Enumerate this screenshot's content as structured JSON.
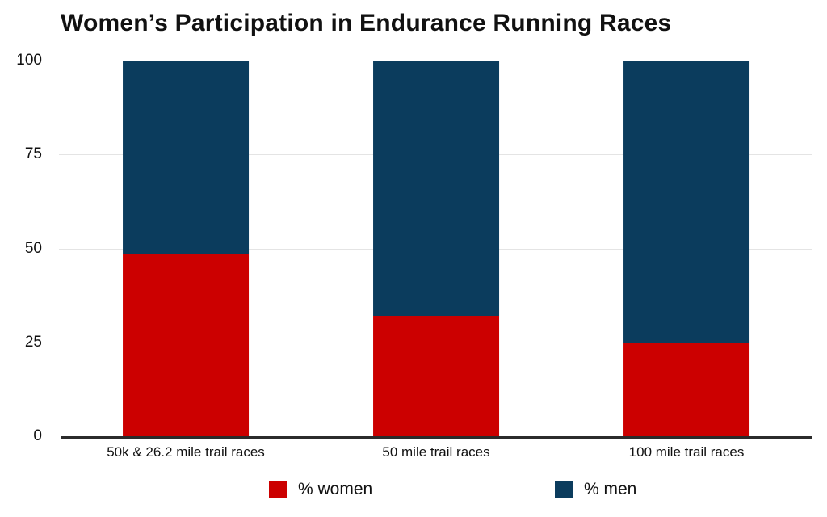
{
  "title": "Women’s Participation in Endurance Running Races",
  "colors": {
    "women": "#CC0000",
    "men": "#0B3C5D",
    "gridline": "#E4E4E4",
    "axis": "#2B2B2B",
    "text": "#111111"
  },
  "chart_data": {
    "type": "bar",
    "stacked": true,
    "title": "Women’s Participation in Endurance Running Races",
    "categories": [
      "50k & 26.2 mile trail races",
      "50 mile trail races",
      "100 mile trail races"
    ],
    "series": [
      {
        "name": "% women",
        "color": "#CC0000",
        "values": [
          48.5,
          32,
          25
        ]
      },
      {
        "name": "% men",
        "color": "#0B3C5D",
        "values": [
          51.5,
          68,
          75
        ]
      }
    ],
    "xlabel": "",
    "ylabel": "",
    "ylim": [
      0,
      100
    ],
    "yticks": [
      0,
      25,
      50,
      75,
      100
    ],
    "grid": true,
    "legend_position": "bottom"
  },
  "legend": {
    "items": [
      {
        "label": "% women",
        "color": "#CC0000"
      },
      {
        "label": "% men",
        "color": "#0B3C5D"
      }
    ]
  }
}
